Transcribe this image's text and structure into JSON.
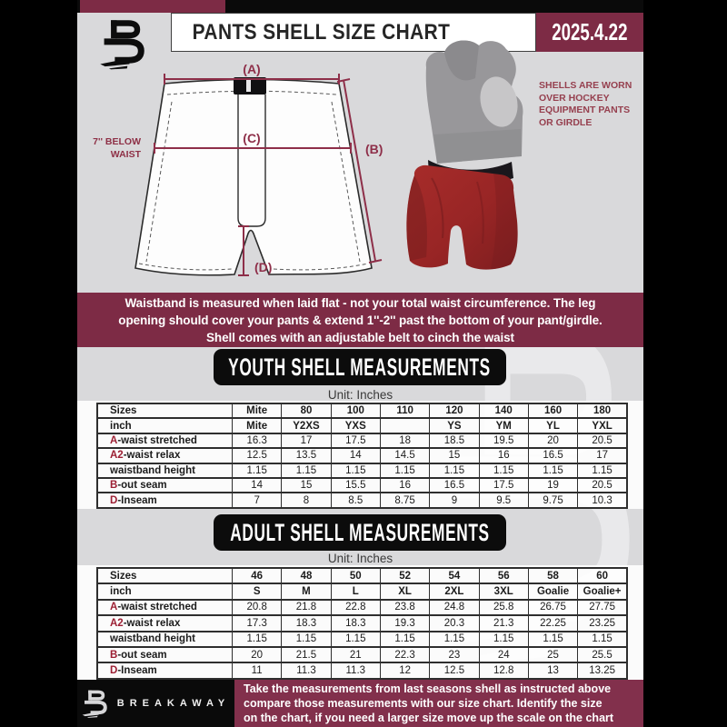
{
  "header": {
    "title": "PANTS SHELL SIZE CHART",
    "date": "2025.4.22"
  },
  "diagram": {
    "label_a": "(A)",
    "label_b": "(B)",
    "label_c": "(C)",
    "label_d": "(D)",
    "waist_note_l1": "7'' BELOW",
    "waist_note_l2": "WAIST"
  },
  "photo_note": {
    "l1": "SHELLS ARE WORN",
    "l2": "OVER HOCKEY",
    "l3": "EQUIPMENT PANTS",
    "l4": "OR GIRDLE"
  },
  "info_banner": {
    "l1": "Waistband is measured when laid flat - not your total waist circumference. The leg",
    "l2": "opening should cover your pants & extend 1''-2'' past the bottom of your pant/girdle.",
    "l3": "Shell comes with an adjustable belt to cinch the waist"
  },
  "youth": {
    "title": "YOUTH SHELL MEASUREMENTS",
    "unit": "Unit: Inches"
  },
  "adult": {
    "title": "ADULT SHELL MEASUREMENTS",
    "unit": "Unit: Inches"
  },
  "youth_table": {
    "rows": [
      {
        "label": "Sizes",
        "bold": true,
        "values": [
          "Mite",
          "80",
          "100",
          "110",
          "120",
          "140",
          "160",
          "180"
        ]
      },
      {
        "label": "inch",
        "bold": true,
        "values": [
          "Mite",
          "Y2XS",
          "YXS",
          "",
          "YS",
          "YM",
          "YL",
          "YXL"
        ]
      },
      {
        "prefix": "A",
        "label": "-waist stretched",
        "values": [
          "16.3",
          "17",
          "17.5",
          "18",
          "18.5",
          "19.5",
          "20",
          "20.5"
        ]
      },
      {
        "prefix": "A2",
        "label": "-waist relax",
        "values": [
          "12.5",
          "13.5",
          "14",
          "14.5",
          "15",
          "16",
          "16.5",
          "17"
        ]
      },
      {
        "label": "waistband height",
        "values": [
          "1.15",
          "1.15",
          "1.15",
          "1.15",
          "1.15",
          "1.15",
          "1.15",
          "1.15"
        ]
      },
      {
        "prefix": "B",
        "label": "-out seam",
        "values": [
          "14",
          "15",
          "15.5",
          "16",
          "16.5",
          "17.5",
          "19",
          "20.5"
        ]
      },
      {
        "prefix": "D",
        "label": "-Inseam",
        "values": [
          "7",
          "8",
          "8.5",
          "8.75",
          "9",
          "9.5",
          "9.75",
          "10.3"
        ]
      }
    ]
  },
  "adult_table": {
    "rows": [
      {
        "label": "Sizes",
        "bold": true,
        "values": [
          "46",
          "48",
          "50",
          "52",
          "54",
          "56",
          "58",
          "60"
        ]
      },
      {
        "label": "inch",
        "bold": true,
        "values": [
          "S",
          "M",
          "L",
          "XL",
          "2XL",
          "3XL",
          "Goalie",
          "Goalie+"
        ]
      },
      {
        "prefix": "A",
        "label": "-waist stretched",
        "values": [
          "20.8",
          "21.8",
          "22.8",
          "23.8",
          "24.8",
          "25.8",
          "26.75",
          "27.75"
        ]
      },
      {
        "prefix": "A2",
        "label": "-waist relax",
        "values": [
          "17.3",
          "18.3",
          "18.3",
          "19.3",
          "20.3",
          "21.3",
          "22.25",
          "23.25"
        ]
      },
      {
        "label": "waistband height",
        "values": [
          "1.15",
          "1.15",
          "1.15",
          "1.15",
          "1.15",
          "1.15",
          "1.15",
          "1.15"
        ]
      },
      {
        "prefix": "B",
        "label": "-out seam",
        "values": [
          "20",
          "21.5",
          "21",
          "22.3",
          "23",
          "24",
          "25",
          "25.5"
        ]
      },
      {
        "prefix": "D",
        "label": "-Inseam",
        "values": [
          "11",
          "11.3",
          "11.3",
          "12",
          "12.5",
          "12.8",
          "13",
          "13.25"
        ]
      }
    ]
  },
  "footer": {
    "brand": "BREAKAWAY",
    "l1": "Take the measurements from last seasons shell as instructed above",
    "l2": "compare those measurements  with our size chart. Identify the size",
    "l3": "on the chart, if you need a larger size move up the scale on the chart"
  },
  "colors": {
    "maroon": "#7d2b45",
    "footer_maroon": "#82304c",
    "accent_red": "#9c1f33",
    "page_gray": "#d9d9db"
  }
}
